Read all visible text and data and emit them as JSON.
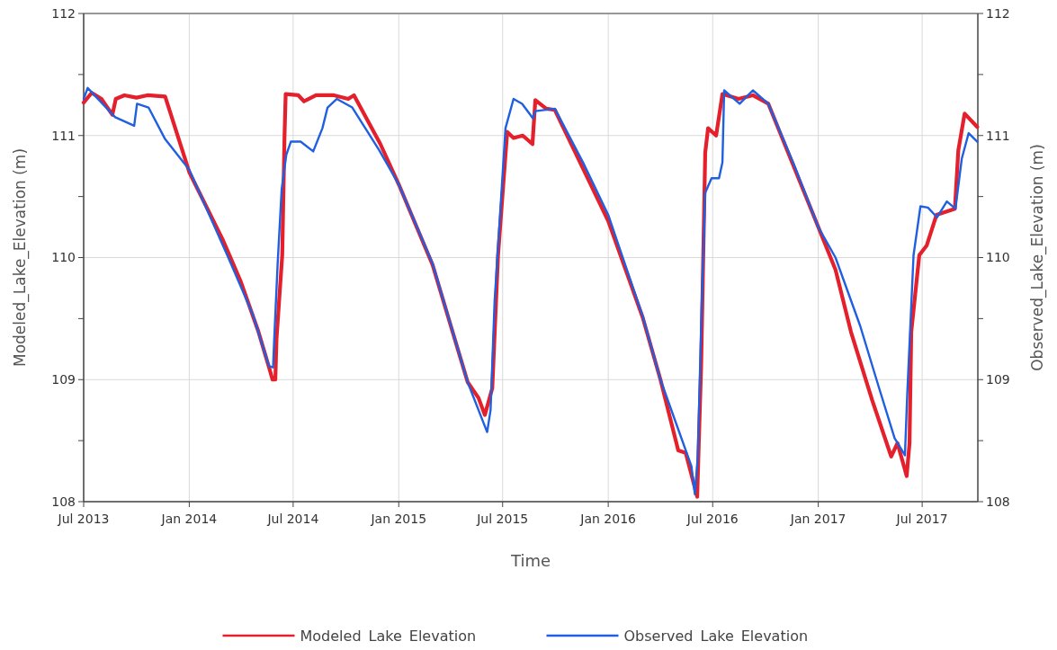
{
  "chart_data": {
    "type": "line",
    "xlabel": "Time",
    "ylabel": "Modeled_Lake_Elevation (m)",
    "y2label": "Observed_Lake_Elevation (m)",
    "xlim": [
      "2013-07-01",
      "2017-10-06"
    ],
    "xticks": [
      {
        "value": "2013-07-01",
        "label": "Jul 2013"
      },
      {
        "value": "2014-01-01",
        "label": "Jan 2014"
      },
      {
        "value": "2014-07-01",
        "label": "Jul 2014"
      },
      {
        "value": "2015-01-01",
        "label": "Jan 2015"
      },
      {
        "value": "2015-07-01",
        "label": "Jul 2015"
      },
      {
        "value": "2016-01-01",
        "label": "Jan 2016"
      },
      {
        "value": "2016-07-01",
        "label": "Jul 2016"
      },
      {
        "value": "2017-01-01",
        "label": "Jan 2017"
      },
      {
        "value": "2017-07-01",
        "label": "Jul 2017"
      }
    ],
    "ylim": [
      108,
      112
    ],
    "yticks": [
      108,
      {
        "value": 108.5,
        "label": null
      },
      109,
      {
        "value": 109.5,
        "label": null
      },
      110,
      {
        "value": 110.5,
        "label": null
      },
      111,
      {
        "value": 111.5,
        "label": null
      },
      112
    ],
    "y2lim": [
      108,
      112
    ],
    "y2ticks": [
      108,
      {
        "value": 108.5,
        "label": null
      },
      109,
      {
        "value": 109.5,
        "label": null
      },
      110,
      {
        "value": 110.5,
        "label": null
      },
      111,
      {
        "value": 111.5,
        "label": null
      },
      112
    ],
    "grid": true,
    "legend": "bottom",
    "marker": "none",
    "line_style": "solid",
    "series": [
      {
        "name": "Modeled_Lake_Elevation",
        "color": "#e3202b",
        "x": [
          "2013-07-01",
          "2013-07-15",
          "2013-08-01",
          "2013-08-20",
          "2013-08-26",
          "2013-09-10",
          "2013-10-01",
          "2013-10-20",
          "2013-11-20",
          "2014-01-01",
          "2014-03-01",
          "2014-04-01",
          "2014-05-01",
          "2014-05-20",
          "2014-05-26",
          "2014-05-31",
          "2014-06-02",
          "2014-06-12",
          "2014-06-16",
          "2014-06-18",
          "2014-07-10",
          "2014-07-20",
          "2014-08-10",
          "2014-09-10",
          "2014-10-05",
          "2014-10-15",
          "2014-11-30",
          "2015-01-01",
          "2015-03-01",
          "2015-05-01",
          "2015-05-20",
          "2015-05-31",
          "2015-06-13",
          "2015-06-23",
          "2015-07-09",
          "2015-07-20",
          "2015-08-05",
          "2015-08-22",
          "2015-08-27",
          "2015-09-15",
          "2015-09-30",
          "2015-11-18",
          "2016-01-01",
          "2016-03-01",
          "2016-04-01",
          "2016-05-02",
          "2016-05-15",
          "2016-06-04",
          "2016-06-11",
          "2016-06-18",
          "2016-06-23",
          "2016-07-07",
          "2016-07-18",
          "2016-08-15",
          "2016-09-09",
          "2016-10-06",
          "2016-11-19",
          "2017-01-01",
          "2017-01-31",
          "2017-02-27",
          "2017-04-05",
          "2017-05-08",
          "2017-05-19",
          "2017-06-04",
          "2017-06-09",
          "2017-06-12",
          "2017-06-26",
          "2017-07-09",
          "2017-07-26",
          "2017-08-27",
          "2017-09-02",
          "2017-09-13",
          "2017-10-05"
        ],
        "values": [
          111.27,
          111.35,
          111.3,
          111.17,
          111.3,
          111.33,
          111.31,
          111.33,
          111.32,
          110.7,
          110.14,
          109.8,
          109.4,
          109.1,
          109.0,
          109.0,
          109.33,
          110.02,
          111.0,
          111.34,
          111.33,
          111.28,
          111.33,
          111.33,
          111.3,
          111.33,
          110.93,
          110.6,
          109.94,
          108.98,
          108.85,
          108.71,
          108.93,
          110.02,
          111.03,
          110.98,
          111.0,
          110.93,
          111.29,
          111.22,
          111.21,
          110.73,
          110.3,
          109.51,
          109.0,
          108.42,
          108.4,
          108.04,
          109.13,
          110.86,
          111.06,
          111.0,
          111.34,
          111.3,
          111.33,
          111.26,
          110.75,
          110.25,
          109.9,
          109.39,
          108.83,
          108.37,
          108.48,
          108.21,
          108.48,
          109.39,
          110.02,
          110.1,
          110.35,
          110.4,
          110.88,
          111.18,
          111.07
        ]
      },
      {
        "name": "Observed_Lake_Elevation",
        "color": "#1f5fe0",
        "x": [
          "2013-07-01",
          "2013-07-08",
          "2013-08-25",
          "2013-09-27",
          "2013-10-02",
          "2013-10-22",
          "2013-11-20",
          "2014-01-01",
          "2014-03-10",
          "2014-04-22",
          "2014-05-20",
          "2014-05-27",
          "2014-05-29",
          "2014-06-04",
          "2014-06-11",
          "2014-06-19",
          "2014-06-27",
          "2014-07-14",
          "2014-08-05",
          "2014-08-21",
          "2014-08-30",
          "2014-09-15",
          "2014-10-12",
          "2014-11-28",
          "2015-01-01",
          "2015-03-01",
          "2015-05-01",
          "2015-06-04",
          "2015-06-10",
          "2015-06-17",
          "2015-07-06",
          "2015-07-20",
          "2015-08-04",
          "2015-08-23",
          "2015-08-27",
          "2015-09-30",
          "2015-11-18",
          "2016-01-01",
          "2016-03-01",
          "2016-04-01",
          "2016-05-25",
          "2016-05-31",
          "2016-06-05",
          "2016-06-12",
          "2016-06-18",
          "2016-06-29",
          "2016-07-12",
          "2016-07-18",
          "2016-07-21",
          "2016-08-17",
          "2016-09-09",
          "2016-10-06",
          "2016-11-19",
          "2017-01-01",
          "2017-01-31",
          "2017-03-15",
          "2017-04-17",
          "2017-05-14",
          "2017-06-01",
          "2017-06-05",
          "2017-06-16",
          "2017-06-28",
          "2017-07-11",
          "2017-07-27",
          "2017-08-13",
          "2017-08-28",
          "2017-09-08",
          "2017-09-20",
          "2017-10-05"
        ],
        "values": [
          111.3,
          111.39,
          111.15,
          111.08,
          111.26,
          111.23,
          110.97,
          110.72,
          110.0,
          109.53,
          109.11,
          109.1,
          109.33,
          109.95,
          110.56,
          110.84,
          110.95,
          110.95,
          110.87,
          111.06,
          111.23,
          111.3,
          111.23,
          110.88,
          110.6,
          109.95,
          108.98,
          108.57,
          108.75,
          109.64,
          111.06,
          111.3,
          111.26,
          111.14,
          111.2,
          111.22,
          110.78,
          110.35,
          109.52,
          109.0,
          108.29,
          108.06,
          108.37,
          109.64,
          110.53,
          110.65,
          110.65,
          110.78,
          111.37,
          111.26,
          111.37,
          111.26,
          110.77,
          110.25,
          110.0,
          109.44,
          108.93,
          108.52,
          108.38,
          108.88,
          110.02,
          110.42,
          110.41,
          110.33,
          110.46,
          110.4,
          110.81,
          111.02,
          110.95
        ]
      }
    ]
  }
}
